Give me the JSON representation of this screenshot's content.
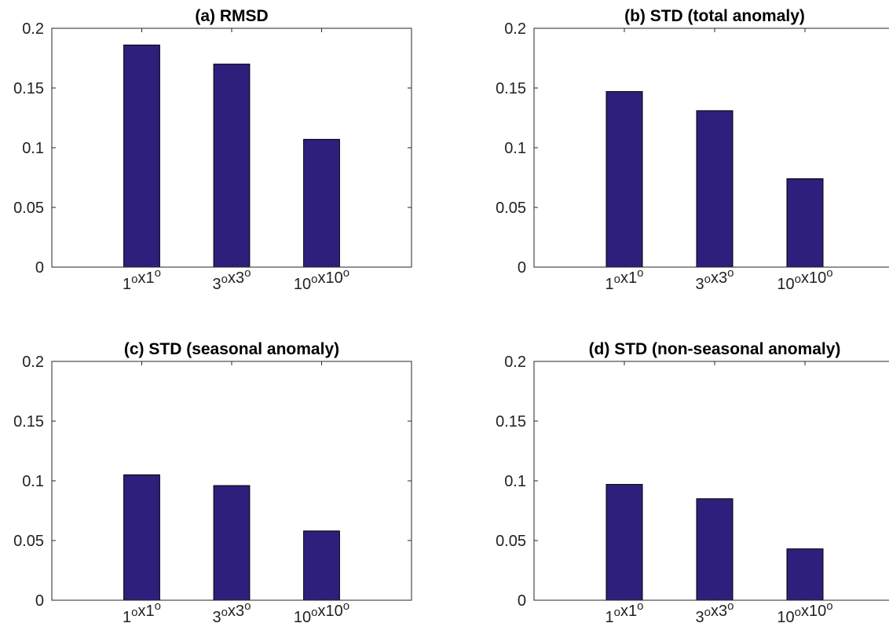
{
  "chart_data": [
    {
      "type": "bar",
      "title": "(a) RMSD",
      "categories": [
        "1°x1°",
        "3°x3°",
        "10°x10°"
      ],
      "values": [
        0.186,
        0.17,
        0.107
      ],
      "ylim": [
        0,
        0.2
      ],
      "yticks": [
        "0",
        "0.05",
        "0.1",
        "0.15",
        "0.2"
      ],
      "xlabel": "",
      "ylabel": "",
      "grid": false
    },
    {
      "type": "bar",
      "title": "(b) STD (total anomaly)",
      "categories": [
        "1°x1°",
        "3°x3°",
        "10°x10°"
      ],
      "values": [
        0.147,
        0.131,
        0.074
      ],
      "ylim": [
        0,
        0.2
      ],
      "yticks": [
        "0",
        "0.05",
        "0.1",
        "0.15",
        "0.2"
      ],
      "xlabel": "",
      "ylabel": "",
      "grid": false
    },
    {
      "type": "bar",
      "title": "(c) STD (seasonal anomaly)",
      "categories": [
        "1°x1°",
        "3°x3°",
        "10°x10°"
      ],
      "values": [
        0.105,
        0.096,
        0.058
      ],
      "ylim": [
        0,
        0.2
      ],
      "yticks": [
        "0",
        "0.05",
        "0.1",
        "0.15",
        "0.2"
      ],
      "xlabel": "",
      "ylabel": "",
      "grid": false
    },
    {
      "type": "bar",
      "title": "(d) STD (non-seasonal anomaly)",
      "categories": [
        "1°x1°",
        "3°x3°",
        "10°x10°"
      ],
      "values": [
        0.097,
        0.085,
        0.043
      ],
      "ylim": [
        0,
        0.2
      ],
      "yticks": [
        "0",
        "0.05",
        "0.1",
        "0.15",
        "0.2"
      ],
      "xlabel": "",
      "ylabel": "",
      "grid": false
    }
  ],
  "style": {
    "bar_color": "#2e1f7c",
    "axis_color": "#262626"
  }
}
